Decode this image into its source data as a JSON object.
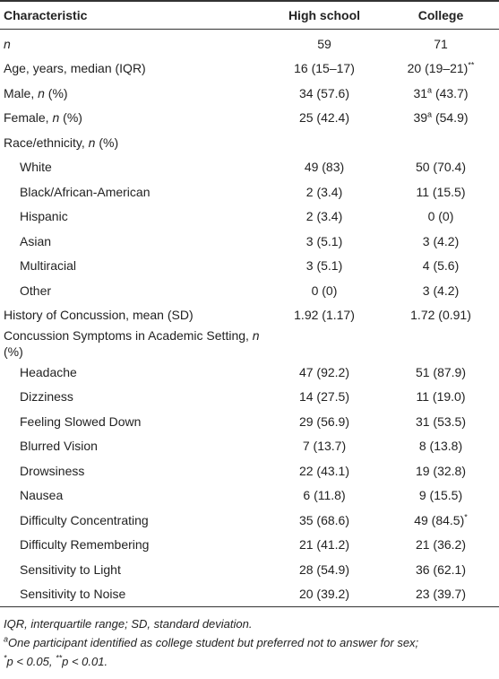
{
  "header": [
    "Characteristic",
    "High school",
    "College"
  ],
  "rows": [
    {
      "label": [
        {
          "text": "n",
          "style": "italic"
        }
      ],
      "indent": false,
      "cells": [
        [
          "59"
        ],
        [
          "71"
        ]
      ]
    },
    {
      "label": [
        "Age, years, median (IQR)"
      ],
      "indent": false,
      "cells": [
        [
          "16 (15–17)"
        ],
        [
          "20 (19–21)",
          {
            "text": "**",
            "style": "sup"
          }
        ]
      ]
    },
    {
      "label": [
        "Male, ",
        {
          "text": "n",
          "style": "italic"
        },
        " (%)"
      ],
      "indent": false,
      "cells": [
        [
          "34 (57.6)"
        ],
        [
          "31",
          {
            "text": "a",
            "style": "sup"
          },
          " (43.7)"
        ]
      ]
    },
    {
      "label": [
        "Female, ",
        {
          "text": "n",
          "style": "italic"
        },
        " (%)"
      ],
      "indent": false,
      "cells": [
        [
          "25 (42.4)"
        ],
        [
          "39",
          {
            "text": "a",
            "style": "sup"
          },
          " (54.9)"
        ]
      ]
    },
    {
      "label": [
        "Race/ethnicity, ",
        {
          "text": "n",
          "style": "italic"
        },
        " (%)"
      ],
      "indent": false,
      "cells": []
    },
    {
      "label": [
        "White"
      ],
      "indent": true,
      "cells": [
        [
          "49 (83)"
        ],
        [
          "50 (70.4)"
        ]
      ]
    },
    {
      "label": [
        "Black/African-American"
      ],
      "indent": true,
      "cells": [
        [
          "2 (3.4)"
        ],
        [
          "11 (15.5)"
        ]
      ]
    },
    {
      "label": [
        "Hispanic"
      ],
      "indent": true,
      "cells": [
        [
          "2 (3.4)"
        ],
        [
          "0 (0)"
        ]
      ]
    },
    {
      "label": [
        "Asian"
      ],
      "indent": true,
      "cells": [
        [
          "3 (5.1)"
        ],
        [
          "3 (4.2)"
        ]
      ]
    },
    {
      "label": [
        "Multiracial"
      ],
      "indent": true,
      "cells": [
        [
          "3 (5.1)"
        ],
        [
          "4 (5.6)"
        ]
      ]
    },
    {
      "label": [
        "Other"
      ],
      "indent": true,
      "cells": [
        [
          "0 (0)"
        ],
        [
          "3 (4.2)"
        ]
      ]
    },
    {
      "label": [
        "History of Concussion, mean (SD)"
      ],
      "indent": false,
      "cells": [
        [
          "1.92 (1.17)"
        ],
        [
          "1.72 (0.91)"
        ]
      ]
    },
    {
      "label": [
        "Concussion Symptoms in Academic Setting, ",
        {
          "text": "n",
          "style": "italic"
        },
        " (%)"
      ],
      "indent": false,
      "cells": []
    },
    {
      "label": [
        "Headache"
      ],
      "indent": true,
      "cells": [
        [
          "47 (92.2)"
        ],
        [
          "51 (87.9)"
        ]
      ]
    },
    {
      "label": [
        "Dizziness"
      ],
      "indent": true,
      "cells": [
        [
          "14 (27.5)"
        ],
        [
          "11 (19.0)"
        ]
      ]
    },
    {
      "label": [
        "Feeling Slowed Down"
      ],
      "indent": true,
      "cells": [
        [
          "29 (56.9)"
        ],
        [
          "31 (53.5)"
        ]
      ]
    },
    {
      "label": [
        "Blurred Vision"
      ],
      "indent": true,
      "cells": [
        [
          "7 (13.7)"
        ],
        [
          "8 (13.8)"
        ]
      ]
    },
    {
      "label": [
        "Drowsiness"
      ],
      "indent": true,
      "cells": [
        [
          "22 (43.1)"
        ],
        [
          "19 (32.8)"
        ]
      ]
    },
    {
      "label": [
        "Nausea"
      ],
      "indent": true,
      "cells": [
        [
          "6 (11.8)"
        ],
        [
          "9 (15.5)"
        ]
      ]
    },
    {
      "label": [
        "Difficulty Concentrating"
      ],
      "indent": true,
      "cells": [
        [
          "35 (68.6)"
        ],
        [
          "49 (84.5)",
          {
            "text": "*",
            "style": "sup"
          }
        ]
      ]
    },
    {
      "label": [
        "Difficulty Remembering"
      ],
      "indent": true,
      "cells": [
        [
          "21 (41.2)"
        ],
        [
          "21 (36.2)"
        ]
      ]
    },
    {
      "label": [
        "Sensitivity to Light"
      ],
      "indent": true,
      "cells": [
        [
          "28 (54.9)"
        ],
        [
          "36 (62.1)"
        ]
      ]
    },
    {
      "label": [
        "Sensitivity to Noise"
      ],
      "indent": true,
      "cells": [
        [
          "20 (39.2)"
        ],
        [
          "23 (39.7)"
        ]
      ]
    }
  ],
  "footnotes": [
    [
      "IQR, interquartile range; SD, standard deviation."
    ],
    [
      {
        "text": "a",
        "style": "sup"
      },
      "One participant identified as college student but preferred not to answer for sex;"
    ],
    [
      {
        "text": "*",
        "style": "sup"
      },
      "p < 0.05, ",
      {
        "text": "**",
        "style": "sup"
      },
      "p < 0.01."
    ]
  ]
}
